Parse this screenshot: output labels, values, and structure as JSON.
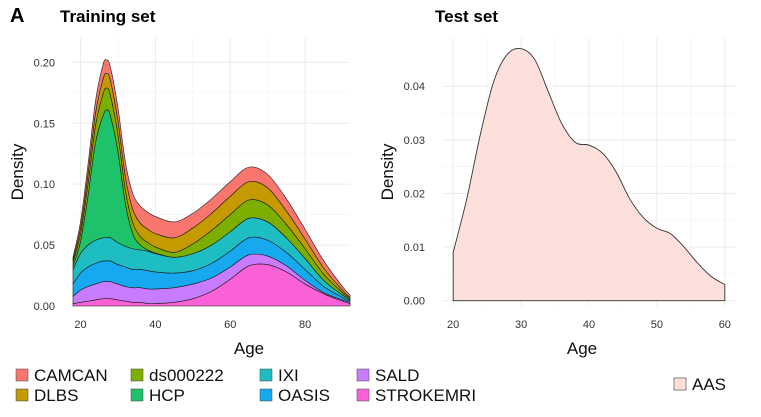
{
  "figure": {
    "panel_letter": "A"
  },
  "colors": {
    "CAMCAN": "#F8766D",
    "DLBS": "#C49A00",
    "ds000222": "#7CAE00",
    "HCP": "#1EC26A",
    "IXI": "#1EBDC2",
    "OASIS": "#16A9F0",
    "SALD": "#C77CFF",
    "STROKEMRI": "#FB61D7",
    "AAS": "#FDE0DC"
  },
  "chart_data": [
    {
      "type": "area",
      "stacked": true,
      "title": "Training set",
      "xlabel": "Age",
      "ylabel": "Density",
      "xlim": [
        18,
        92
      ],
      "ylim": [
        0,
        0.22
      ],
      "xticks": [
        20,
        40,
        60,
        80
      ],
      "yticks": [
        0,
        0.05,
        0.1,
        0.15,
        0.2
      ],
      "ytick_labels": [
        "0.00",
        "0.05",
        "0.10",
        "0.15",
        "0.20"
      ],
      "grid": true,
      "x": [
        18,
        20,
        22,
        24,
        26,
        27,
        28,
        30,
        32,
        34,
        36,
        38,
        40,
        45,
        50,
        55,
        60,
        65,
        70,
        75,
        80,
        85,
        90,
        92
      ],
      "series": [
        {
          "name": "STROKEMRI",
          "values": [
            0.002,
            0.003,
            0.004,
            0.005,
            0.006,
            0.006,
            0.006,
            0.005,
            0.004,
            0.003,
            0.003,
            0.002,
            0.002,
            0.003,
            0.006,
            0.012,
            0.022,
            0.033,
            0.034,
            0.028,
            0.018,
            0.01,
            0.004,
            0.002
          ]
        },
        {
          "name": "SALD",
          "values": [
            0.006,
            0.01,
            0.012,
            0.013,
            0.014,
            0.014,
            0.014,
            0.013,
            0.012,
            0.012,
            0.012,
            0.012,
            0.012,
            0.012,
            0.012,
            0.011,
            0.01,
            0.009,
            0.007,
            0.005,
            0.003,
            0.001,
            0.001,
            0.001
          ]
        },
        {
          "name": "OASIS",
          "values": [
            0.01,
            0.014,
            0.016,
            0.017,
            0.017,
            0.017,
            0.017,
            0.016,
            0.016,
            0.015,
            0.015,
            0.015,
            0.014,
            0.012,
            0.011,
            0.012,
            0.013,
            0.014,
            0.013,
            0.011,
            0.009,
            0.005,
            0.002,
            0.001
          ]
        },
        {
          "name": "IXI",
          "values": [
            0.012,
            0.016,
            0.018,
            0.019,
            0.019,
            0.019,
            0.019,
            0.018,
            0.017,
            0.017,
            0.016,
            0.016,
            0.015,
            0.013,
            0.014,
            0.015,
            0.016,
            0.016,
            0.015,
            0.012,
            0.009,
            0.005,
            0.002,
            0.001
          ]
        },
        {
          "name": "HCP",
          "values": [
            0.003,
            0.01,
            0.04,
            0.08,
            0.1,
            0.105,
            0.1,
            0.075,
            0.035,
            0.012,
            0.004,
            0.001,
            0.0005,
            0,
            0,
            0,
            0,
            0,
            0,
            0,
            0,
            0,
            0,
            0
          ]
        },
        {
          "name": "ds000222",
          "values": [
            0.003,
            0.006,
            0.01,
            0.014,
            0.018,
            0.018,
            0.017,
            0.014,
            0.011,
            0.009,
            0.007,
            0.006,
            0.005,
            0.004,
            0.008,
            0.012,
            0.014,
            0.015,
            0.014,
            0.011,
            0.008,
            0.005,
            0.002,
            0.001
          ]
        },
        {
          "name": "DLBS",
          "values": [
            0.002,
            0.005,
            0.008,
            0.01,
            0.012,
            0.012,
            0.012,
            0.011,
            0.011,
            0.011,
            0.011,
            0.011,
            0.011,
            0.012,
            0.013,
            0.014,
            0.015,
            0.015,
            0.014,
            0.011,
            0.008,
            0.005,
            0.002,
            0.001
          ]
        },
        {
          "name": "CAMCAN",
          "values": [
            0.002,
            0.005,
            0.008,
            0.01,
            0.012,
            0.011,
            0.011,
            0.011,
            0.012,
            0.013,
            0.014,
            0.014,
            0.014,
            0.013,
            0.012,
            0.012,
            0.012,
            0.012,
            0.011,
            0.01,
            0.008,
            0.006,
            0.003,
            0.002
          ]
        }
      ]
    },
    {
      "type": "area",
      "title": "Test set",
      "xlabel": "Age",
      "ylabel": "Density",
      "xlim": [
        18.5,
        61.5
      ],
      "ylim": [
        -0.001,
        0.049
      ],
      "xticks": [
        20,
        30,
        40,
        50,
        60
      ],
      "yticks": [
        0,
        0.01,
        0.02,
        0.03,
        0.04
      ],
      "ytick_labels": [
        "0.00",
        "0.01",
        "0.02",
        "0.03",
        "0.04"
      ],
      "grid": true,
      "x": [
        20,
        22,
        24,
        26,
        28,
        30,
        32,
        34,
        36,
        38,
        40,
        42,
        44,
        46,
        48,
        50,
        52,
        54,
        56,
        58,
        60
      ],
      "series": [
        {
          "name": "AAS",
          "values": [
            0.009,
            0.019,
            0.031,
            0.041,
            0.046,
            0.047,
            0.045,
            0.039,
            0.033,
            0.0295,
            0.029,
            0.0275,
            0.024,
            0.019,
            0.0155,
            0.0135,
            0.0125,
            0.01,
            0.007,
            0.0045,
            0.003
          ]
        }
      ]
    }
  ],
  "legend": {
    "items": [
      {
        "label": "CAMCAN",
        "color_key": "CAMCAN"
      },
      {
        "label": "ds000222",
        "color_key": "ds000222"
      },
      {
        "label": "IXI",
        "color_key": "IXI"
      },
      {
        "label": "SALD",
        "color_key": "SALD"
      },
      {
        "label": "DLBS",
        "color_key": "DLBS"
      },
      {
        "label": "HCP",
        "color_key": "HCP"
      },
      {
        "label": "OASIS",
        "color_key": "OASIS"
      },
      {
        "label": "STROKEMRI",
        "color_key": "STROKEMRI"
      }
    ],
    "test_item": {
      "label": "AAS",
      "color_key": "AAS"
    }
  }
}
